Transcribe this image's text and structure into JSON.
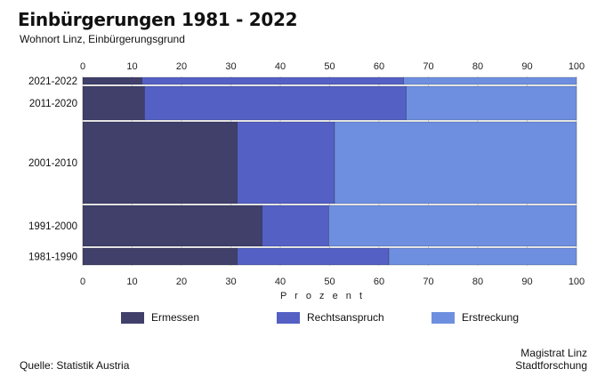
{
  "title": "Einbürgerungen 1981 - 2022",
  "subtitle": "Wohnort Linz, Einbürgerungsgrund",
  "source": "Quelle: Statistik Austria",
  "credit_line1": "Magistrat Linz",
  "credit_line2": "Stadtforschung",
  "colors": {
    "Ermessen": "#40406b",
    "Rechtsanspruch": "#5460c4",
    "Erstreckung": "#6e8fe0"
  },
  "chart_data": {
    "type": "bar",
    "orientation": "horizontal",
    "stacked": true,
    "variable_width": true,
    "categories": [
      "2021-2022",
      "2011-2020",
      "2001-2010",
      "1991-2000",
      "1981-1990"
    ],
    "series": [
      {
        "name": "Ermessen",
        "values": [
          12,
          12.5,
          31.3,
          36.3,
          31.3
        ]
      },
      {
        "name": "Rechtsanspruch",
        "values": [
          53,
          53,
          19.7,
          13.5,
          30.7
        ]
      },
      {
        "name": "Erstreckung",
        "values": [
          35,
          34.5,
          49,
          50.2,
          38
        ]
      }
    ],
    "xlabel": "P r o z e n t",
    "xlim": [
      0,
      100
    ],
    "xticks": [
      0,
      10,
      20,
      30,
      40,
      50,
      60,
      70,
      80,
      90,
      100
    ],
    "grid": "vertical",
    "legend": "bottom"
  }
}
